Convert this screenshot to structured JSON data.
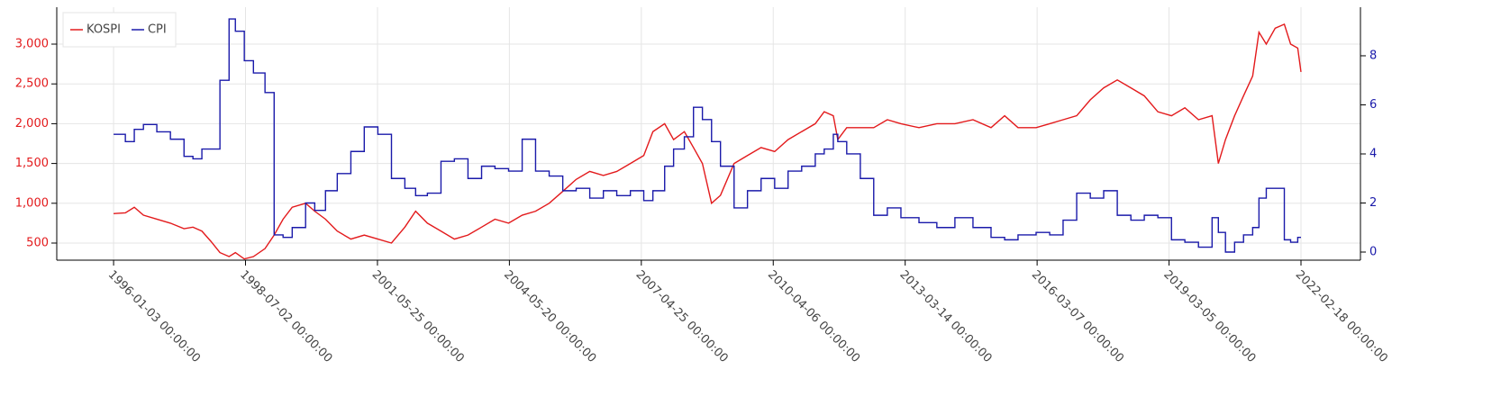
{
  "chart_data": {
    "type": "line",
    "x": [
      0,
      58,
      102,
      147,
      213,
      280,
      347,
      391,
      435,
      480,
      524,
      569,
      600,
      644,
      689,
      746,
      791,
      835,
      880,
      946,
      991,
      1044,
      1102,
      1169,
      1235,
      1302,
      1369,
      1435,
      1488,
      1546,
      1613,
      1679,
      1746,
      1813,
      1879,
      1946,
      2013,
      2079,
      2146,
      2213,
      2279,
      2346,
      2413,
      2479,
      2546,
      2612,
      2657,
      2715,
      2759,
      2812,
      2857,
      2901,
      2946,
      2990,
      3057,
      3123,
      3190,
      3257,
      3323,
      3390,
      3457,
      3501,
      3546,
      3568,
      3612,
      3679,
      3745,
      3812,
      3879,
      3968,
      4056,
      4145,
      4234,
      4323,
      4390,
      4456,
      4545,
      4612,
      4678,
      4745,
      4812,
      4878,
      4945,
      5012,
      5078,
      5145,
      5212,
      5278,
      5345,
      5412,
      5443,
      5478,
      5523,
      5567,
      5612,
      5643,
      5679,
      5723,
      5768,
      5799,
      5834,
      5850
    ],
    "series": [
      {
        "name": "KOSPI",
        "color": "#e31a1c",
        "axis": "y",
        "values": [
          870,
          880,
          950,
          850,
          800,
          750,
          680,
          700,
          650,
          520,
          380,
          330,
          380,
          300,
          330,
          430,
          600,
          800,
          950,
          1000,
          900,
          800,
          650,
          550,
          600,
          550,
          500,
          700,
          900,
          750,
          650,
          550,
          600,
          700,
          800,
          750,
          850,
          900,
          1000,
          1150,
          1300,
          1400,
          1350,
          1400,
          1500,
          1600,
          1900,
          2000,
          1800,
          1900,
          1700,
          1500,
          1000,
          1100,
          1500,
          1600,
          1700,
          1650,
          1800,
          1900,
          2000,
          2150,
          2100,
          1800,
          1950,
          1950,
          1950,
          2050,
          2000,
          1950,
          2000,
          2000,
          2050,
          1950,
          2100,
          1950,
          1950,
          2000,
          2050,
          2100,
          2300,
          2450,
          2550,
          2450,
          2350,
          2150,
          2100,
          2200,
          2050,
          2100,
          1500,
          1800,
          2100,
          2350,
          2600,
          3150,
          3000,
          3200,
          3250,
          3000,
          2950,
          2650
        ]
      },
      {
        "name": "CPI",
        "color": "#1a1aaa",
        "axis": "y2",
        "step": true,
        "values": [
          4.8,
          4.5,
          5.0,
          5.2,
          4.9,
          4.6,
          3.9,
          3.8,
          4.2,
          4.2,
          7.0,
          9.5,
          9.0,
          7.8,
          7.3,
          6.5,
          0.7,
          0.6,
          1.0,
          2.0,
          1.7,
          2.5,
          3.2,
          4.1,
          5.1,
          4.8,
          3.0,
          2.6,
          2.3,
          2.4,
          3.7,
          3.8,
          3.0,
          3.5,
          3.4,
          3.3,
          4.6,
          3.3,
          3.1,
          2.5,
          2.6,
          2.2,
          2.5,
          2.3,
          2.5,
          2.1,
          2.5,
          3.5,
          4.2,
          4.7,
          5.9,
          5.4,
          4.5,
          3.5,
          1.8,
          2.5,
          3.0,
          2.6,
          3.3,
          3.5,
          4.0,
          4.2,
          4.8,
          4.5,
          4.0,
          3.0,
          1.5,
          1.8,
          1.4,
          1.2,
          1.0,
          1.4,
          1.0,
          0.6,
          0.5,
          0.7,
          0.8,
          0.7,
          1.3,
          2.4,
          2.2,
          2.5,
          1.5,
          1.3,
          1.5,
          1.4,
          0.5,
          0.4,
          0.2,
          1.4,
          0.8,
          0.0,
          0.4,
          0.7,
          1.0,
          2.2,
          2.6,
          2.6,
          0.5,
          0.4,
          0.6,
          0.6
        ]
      }
    ],
    "xlim": [
      -280,
      6143
    ],
    "xticks": [
      {
        "value": 0,
        "label": "1996-01-03 00:00:00"
      },
      {
        "value": 650,
        "label": "1998-07-02 00:00:00"
      },
      {
        "value": 1300,
        "label": "2001-05-25 00:00:00"
      },
      {
        "value": 1950,
        "label": "2004-05-20 00:00:00"
      },
      {
        "value": 2600,
        "label": "2007-04-25 00:00:00"
      },
      {
        "value": 3250,
        "label": "2010-04-06 00:00:00"
      },
      {
        "value": 3900,
        "label": "2013-03-14 00:00:00"
      },
      {
        "value": 4550,
        "label": "2016-03-07 00:00:00"
      },
      {
        "value": 5200,
        "label": "2019-03-05 00:00:00"
      },
      {
        "value": 5850,
        "label": "2022-02-18 00:00:00"
      }
    ],
    "ylim": [
      285,
      3464
    ],
    "yticks": [
      500,
      {
        "value": 1000,
        "label": "1,000"
      },
      {
        "value": 1500,
        "label": "1,500"
      },
      {
        "value": 2000,
        "label": "2,000"
      },
      {
        "value": 2500,
        "label": "2,500"
      },
      {
        "value": 3000,
        "label": "3,000"
      }
    ],
    "y2lim": [
      -0.33,
      9.98
    ],
    "y2ticks": [
      0,
      2,
      4,
      6,
      8
    ],
    "grid": true,
    "legend": "top-left"
  }
}
